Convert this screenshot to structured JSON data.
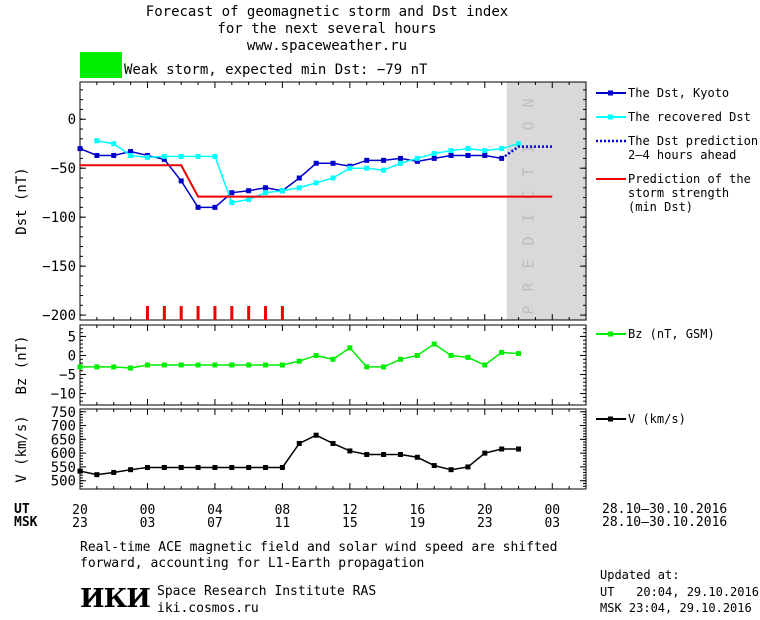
{
  "header": {
    "title_line1": "Forecast of geomagnetic storm and Dst index",
    "title_line2": "for the next several hours",
    "website": "www.spaceweather.ru",
    "storm_label": "Weak storm, expected min Dst: −79 nT",
    "storm_color": "#00ee00"
  },
  "chart_data": [
    {
      "type": "line",
      "ylabel": "Dst (nT)",
      "ylim": [
        -205,
        38
      ],
      "yticks": [
        0,
        -50,
        -100,
        -150,
        -200
      ],
      "ytick_labels": [
        "0",
        "−50",
        "−100",
        "−150",
        "−200"
      ],
      "prediction_label": "PREDICTION",
      "series": [
        {
          "name": "The Dst, Kyoto",
          "color": "#0000cc",
          "marker": "square",
          "x": [
            20,
            21,
            22,
            23,
            24,
            25,
            26,
            27,
            28,
            29,
            30,
            31,
            32,
            33,
            34,
            35,
            36,
            37,
            38,
            39,
            40,
            41,
            42,
            43,
            44,
            45
          ],
          "y": [
            -30,
            -37,
            -37,
            -33,
            -37,
            -41,
            -63,
            -90,
            -90,
            -75,
            -73,
            -70,
            -73,
            -60,
            -45,
            -45,
            -48,
            -42,
            -42,
            -40,
            -43,
            -40,
            -37,
            -37,
            -37,
            -40
          ]
        },
        {
          "name": "The recovered Dst",
          "color": "#00ffff",
          "marker": "square",
          "x": [
            21,
            22,
            23,
            24,
            25,
            26,
            27,
            28,
            29,
            30,
            31,
            32,
            33,
            34,
            35,
            36,
            37,
            38,
            39,
            40,
            41,
            42,
            43,
            44,
            45,
            46
          ],
          "y": [
            -22,
            -25,
            -37,
            -39,
            -38,
            -38,
            -38,
            -38,
            -85,
            -82,
            -75,
            -73,
            -70,
            -65,
            -60,
            -50,
            -50,
            -52,
            -45,
            -40,
            -35,
            -32,
            -30,
            -32,
            -30,
            -25
          ]
        },
        {
          "name": "The Dst prediction",
          "name_line2": "2–4 hours ahead",
          "color": "#0000cc",
          "dashed": true,
          "x": [
            45,
            46,
            48
          ],
          "y": [
            -40,
            -28,
            -28
          ]
        },
        {
          "name": "Prediction of the",
          "name_line2": "storm strength",
          "name_line3": "(min Dst)",
          "color": "#ee0000",
          "x": [
            20,
            26,
            27,
            48
          ],
          "y": [
            -47,
            -47,
            -79,
            -79
          ]
        }
      ],
      "red_ticks_x": [
        24,
        25,
        26,
        27,
        28,
        29,
        30,
        31,
        32
      ]
    },
    {
      "type": "line",
      "ylabel": "Bz (nT)",
      "ylim": [
        -13,
        8
      ],
      "yticks": [
        5,
        0,
        -5,
        -10
      ],
      "ytick_labels": [
        "5",
        "0",
        "−5",
        "−10"
      ],
      "series": [
        {
          "name": "Bz (nT, GSM)",
          "color": "#00ee00",
          "marker": "square",
          "x": [
            20,
            21,
            22,
            23,
            24,
            25,
            26,
            27,
            28,
            29,
            30,
            31,
            32,
            33,
            34,
            35,
            36,
            37,
            38,
            39,
            40,
            41,
            42,
            43,
            44,
            45,
            46
          ],
          "y": [
            -3,
            -3,
            -3,
            -3.3,
            -2.5,
            -2.5,
            -2.5,
            -2.5,
            -2.5,
            -2.5,
            -2.5,
            -2.5,
            -2.5,
            -1.5,
            0,
            -1,
            2,
            -3,
            -3,
            -1,
            0,
            3,
            0,
            -0.5,
            -2.5,
            0.8,
            0.5
          ]
        }
      ]
    },
    {
      "type": "line",
      "ylabel": "V (km/s)",
      "ylim": [
        470,
        760
      ],
      "yticks": [
        500,
        550,
        600,
        650,
        700,
        750
      ],
      "ytick_labels": [
        "500",
        "550",
        "600",
        "650",
        "700",
        "750"
      ],
      "series": [
        {
          "name": "V (km/s)",
          "color": "#000000",
          "marker": "square",
          "x": [
            20,
            21,
            22,
            23,
            24,
            25,
            26,
            27,
            28,
            29,
            30,
            31,
            32,
            33,
            34,
            35,
            36,
            37,
            38,
            39,
            40,
            41,
            42,
            43,
            44,
            45,
            46
          ],
          "y": [
            535,
            522,
            530,
            540,
            548,
            548,
            548,
            548,
            548,
            548,
            548,
            548,
            548,
            635,
            665,
            635,
            608,
            595,
            595,
            595,
            585,
            555,
            540,
            550,
            600,
            615,
            615
          ]
        }
      ]
    }
  ],
  "xaxis": {
    "xlim": [
      20,
      50
    ],
    "ut_label": "UT",
    "msk_label": "MSK",
    "ut_ticks": [
      "20",
      "00",
      "04",
      "08",
      "12",
      "16",
      "20",
      "00"
    ],
    "msk_ticks": [
      "23",
      "03",
      "07",
      "11",
      "15",
      "19",
      "23",
      "03"
    ],
    "date_range_ut": "28.10–30.10.2016",
    "date_range_msk": "28.10–30.10.2016"
  },
  "footer": {
    "note_line1": "Real-time ACE magnetic field and solar wind speed are shifted",
    "note_line2": "forward, accounting for L1-Earth propagation",
    "logo_text": "ИКИ",
    "institute": "Space Research Institute RAS",
    "institute_url": "iki.cosmos.ru",
    "updated_label": "Updated at:",
    "updated_ut": "UT   20:04, 29.10.2016",
    "updated_msk": "MSK 23:04, 29.10.2016"
  }
}
